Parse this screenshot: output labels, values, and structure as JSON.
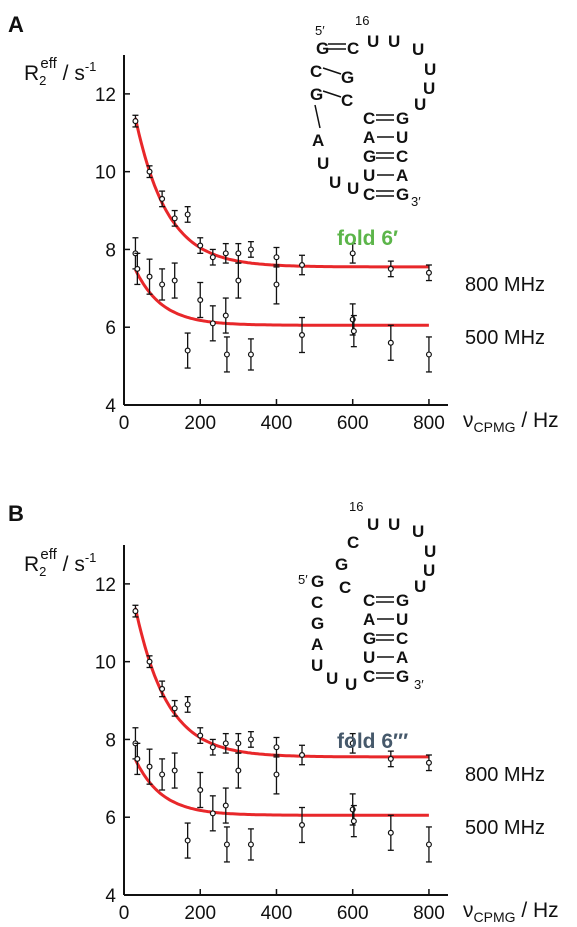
{
  "panels": [
    {
      "label": "A",
      "ylabel_main": "R",
      "ylabel_sub": "2",
      "ylabel_sup": "eff",
      "ylabel_unit": " / s",
      "ylabel_unit_sup": "-1",
      "xlabel_main": "ν",
      "xlabel_sub": "CPMG",
      "xlabel_unit": " / Hz",
      "fold_label": "fold 6′",
      "fold_color": "#5cb54a",
      "structure": {
        "five_prime": "5′",
        "three_prime": "3′",
        "loop_number": "16"
      }
    },
    {
      "label": "B",
      "ylabel_main": "R",
      "ylabel_sub": "2",
      "ylabel_sup": "eff",
      "ylabel_unit": " / s",
      "ylabel_unit_sup": "-1",
      "xlabel_main": "ν",
      "xlabel_sub": "CPMG",
      "xlabel_unit": " / Hz",
      "fold_label": "fold 6′′′",
      "fold_color": "#46596b",
      "structure": {
        "five_prime": "5′",
        "three_prime": "3′",
        "loop_number": "16"
      }
    }
  ],
  "colors": {
    "fit_line": "#e8272a",
    "highlight_nucleotide": "#d2262b",
    "points": "#111111"
  },
  "chart_data": [
    {
      "type": "scatter",
      "title": "",
      "xlabel": "νCPMG / Hz",
      "ylabel": "R2eff / s-1",
      "xlim": [
        0,
        850
      ],
      "ylim": [
        4,
        13
      ],
      "x_ticks": [
        0,
        200,
        400,
        600,
        800
      ],
      "y_ticks": [
        4,
        6,
        8,
        10,
        12
      ],
      "series": [
        {
          "name": "800 MHz",
          "x": [
            30,
            67,
            100,
            133,
            167,
            200,
            233,
            267,
            300,
            333,
            400,
            467,
            600,
            700,
            800
          ],
          "y": [
            11.3,
            10.0,
            9.3,
            8.8,
            8.9,
            8.1,
            7.8,
            7.9,
            7.9,
            8.0,
            7.8,
            7.6,
            7.9,
            7.5,
            7.4
          ],
          "err": [
            0.15,
            0.15,
            0.2,
            0.2,
            0.2,
            0.2,
            0.2,
            0.25,
            0.25,
            0.2,
            0.25,
            0.25,
            0.25,
            0.2,
            0.2
          ],
          "fit": {
            "R0": 7.55,
            "A": 5.5,
            "k": 83
          }
        },
        {
          "name": "500 MHz",
          "x": [
            30,
            35,
            67,
            100,
            133,
            167,
            200,
            233,
            267,
            270,
            300,
            333,
            400,
            467,
            600,
            603,
            700,
            800
          ],
          "y": [
            7.9,
            7.5,
            7.3,
            7.1,
            7.2,
            5.4,
            6.7,
            6.1,
            6.3,
            5.3,
            7.2,
            5.3,
            7.1,
            5.8,
            6.2,
            5.9,
            5.6,
            5.3
          ],
          "err": [
            0.4,
            0.4,
            0.45,
            0.4,
            0.45,
            0.45,
            0.45,
            0.45,
            0.45,
            0.45,
            0.45,
            0.4,
            0.5,
            0.45,
            0.4,
            0.4,
            0.45,
            0.45
          ],
          "fit": {
            "R0": 6.05,
            "A": 2.2,
            "k": 70
          }
        }
      ]
    },
    {
      "type": "scatter",
      "title": "",
      "xlabel": "νCPMG / Hz",
      "ylabel": "R2eff / s-1",
      "xlim": [
        0,
        850
      ],
      "ylim": [
        4,
        13
      ],
      "x_ticks": [
        0,
        200,
        400,
        600,
        800
      ],
      "y_ticks": [
        4,
        6,
        8,
        10,
        12
      ],
      "series": [
        {
          "name": "800 MHz",
          "x": [
            30,
            67,
            100,
            133,
            167,
            200,
            233,
            267,
            300,
            333,
            400,
            467,
            600,
            700,
            800
          ],
          "y": [
            11.3,
            10.0,
            9.3,
            8.8,
            8.9,
            8.1,
            7.8,
            7.9,
            7.9,
            8.0,
            7.8,
            7.6,
            7.9,
            7.5,
            7.4
          ],
          "err": [
            0.15,
            0.15,
            0.2,
            0.2,
            0.2,
            0.2,
            0.2,
            0.25,
            0.25,
            0.2,
            0.25,
            0.25,
            0.25,
            0.2,
            0.2
          ],
          "fit": {
            "R0": 7.55,
            "A": 5.5,
            "k": 83
          }
        },
        {
          "name": "500 MHz",
          "x": [
            30,
            35,
            67,
            100,
            133,
            167,
            200,
            233,
            267,
            270,
            300,
            333,
            400,
            467,
            600,
            603,
            700,
            800
          ],
          "y": [
            7.9,
            7.5,
            7.3,
            7.1,
            7.2,
            5.4,
            6.7,
            6.1,
            6.3,
            5.3,
            7.2,
            5.3,
            7.1,
            5.8,
            6.2,
            5.9,
            5.6,
            5.3
          ],
          "err": [
            0.4,
            0.4,
            0.45,
            0.4,
            0.45,
            0.45,
            0.45,
            0.45,
            0.45,
            0.45,
            0.45,
            0.4,
            0.5,
            0.45,
            0.4,
            0.4,
            0.45,
            0.45
          ],
          "fit": {
            "R0": 6.05,
            "A": 2.2,
            "k": 70
          }
        }
      ]
    }
  ],
  "rna_A": {
    "five_prime_stem": [
      "G",
      "C",
      "G"
    ],
    "five_prime_stem_pair": [
      "C",
      "G",
      "C"
    ],
    "single_strand": [
      "A",
      "U",
      "U",
      "U"
    ],
    "loop_highlight": "U",
    "loop": [
      "U",
      "U",
      "U",
      "U",
      "U"
    ],
    "stem2_left": [
      "C",
      "A",
      "G",
      "U",
      "C"
    ],
    "stem2_right": [
      "G",
      "U",
      "C",
      "A",
      "G"
    ]
  },
  "rna_B": {
    "five_prime_strand": [
      "G",
      "C",
      "G",
      "A",
      "U",
      "U",
      "U"
    ],
    "upper_left": [
      "C",
      "G",
      "C"
    ],
    "loop_highlight": "U",
    "loop": [
      "U",
      "U",
      "U",
      "U",
      "U"
    ],
    "stem2_left": [
      "C",
      "A",
      "G",
      "U",
      "C"
    ],
    "stem2_right": [
      "G",
      "U",
      "C",
      "A",
      "G"
    ]
  }
}
